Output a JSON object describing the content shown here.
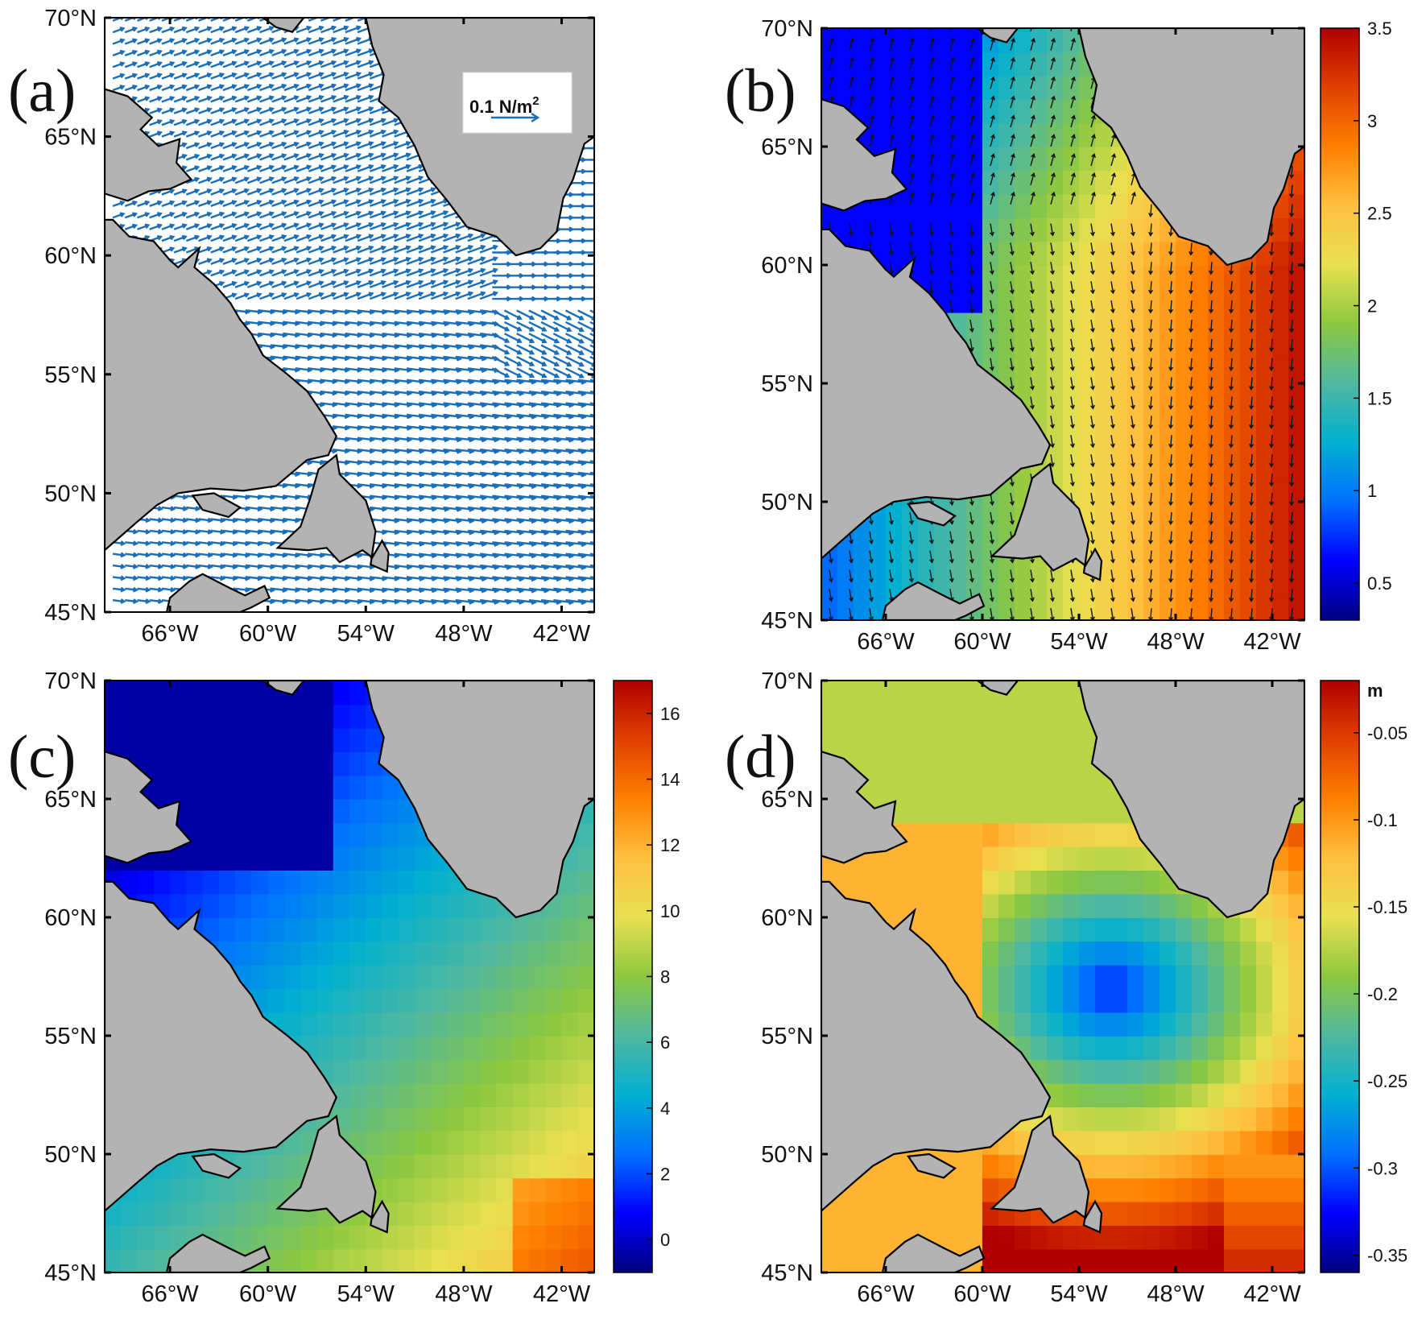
{
  "map": {
    "lon_range": [
      -70,
      -40
    ],
    "lat_range": [
      45,
      70
    ],
    "lon_ticks": [
      "66°W",
      "60°W",
      "54°W",
      "48°W",
      "42°W"
    ],
    "lon_tick_values": [
      -66,
      -60,
      -54,
      -48,
      -42
    ],
    "lat_ticks": [
      "45°N",
      "50°N",
      "55°N",
      "60°N",
      "65°N",
      "70°N"
    ],
    "lat_tick_values": [
      45,
      50,
      55,
      60,
      65,
      70
    ],
    "land_color": "#b3b3b3",
    "coast_color": "#000000"
  },
  "panels": [
    {
      "id": "a",
      "label": "(a)",
      "type": "vector",
      "scale_arrow_text": "0.1 N/m",
      "scale_arrow_sup": "2",
      "arrow_color": "#1a6fb8"
    },
    {
      "id": "b",
      "label": "(b)",
      "type": "filled_contour_with_vectors",
      "colorbar_ticks": [
        "3.5",
        "3",
        "2.5",
        "2",
        "1.5",
        "1",
        "0.5"
      ],
      "colorbar_tick_values": [
        3.5,
        3,
        2.5,
        2,
        1.5,
        1,
        0.5
      ],
      "colorbar_range": [
        0.3,
        3.5
      ],
      "arrow_color": "#111111"
    },
    {
      "id": "c",
      "label": "(c)",
      "type": "filled_contour",
      "colorbar_ticks": [
        "16",
        "14",
        "12",
        "10",
        "8",
        "6",
        "4",
        "2",
        "0"
      ],
      "colorbar_tick_values": [
        16,
        14,
        12,
        10,
        8,
        6,
        4,
        2,
        0
      ],
      "colorbar_range": [
        -1,
        17
      ]
    },
    {
      "id": "d",
      "label": "(d)",
      "type": "filled_contour",
      "colorbar_unit": "m",
      "colorbar_ticks": [
        "-0.05",
        "-0.1",
        "-0.15",
        "-0.2",
        "-0.25",
        "-0.3",
        "-0.35"
      ],
      "colorbar_tick_values": [
        -0.05,
        -0.1,
        -0.15,
        -0.2,
        -0.25,
        -0.3,
        -0.35
      ],
      "colorbar_range": [
        -0.36,
        -0.02
      ]
    }
  ],
  "colormap": [
    "#00007f",
    "#0000ff",
    "#0070ff",
    "#00b0d0",
    "#50b8a0",
    "#8cc840",
    "#e8e050",
    "#ffc040",
    "#ff8000",
    "#e04000",
    "#b00000"
  ]
}
